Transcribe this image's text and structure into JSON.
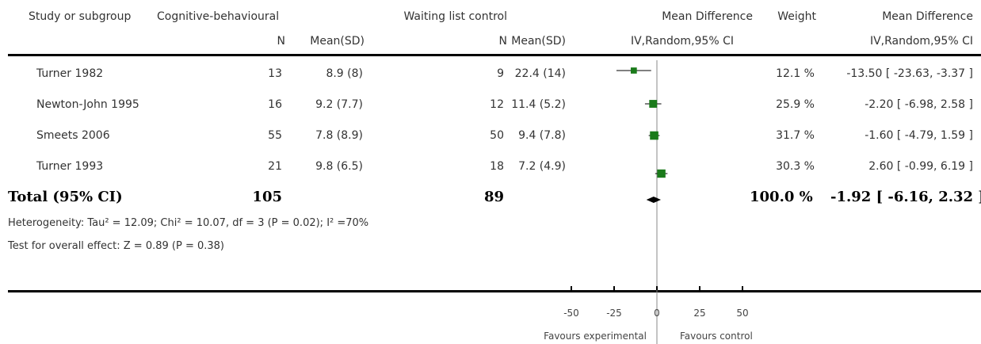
{
  "headers": {
    "study": "Study or subgroup",
    "exp_group": "Cognitive-behavioural",
    "ctrl_group": "Waiting list control",
    "md": "Mean Difference",
    "weight": "Weight",
    "md2": "Mean Difference",
    "n": "N",
    "mean_sd": "Mean(SD)",
    "n2": "N",
    "mean_sd2": "Mean(SD)",
    "method": "IV,Random,95% CI",
    "method2": "IV,Random,95% CI"
  },
  "rows": [
    {
      "study": "Turner 1982",
      "n_exp": "13",
      "msd_exp": "8.9 (8)",
      "n_ctrl": "9",
      "msd_ctrl": "22.4 (14)",
      "weight": "12.1 %",
      "ci_text": "-13.50 [ -23.63, -3.37 ]"
    },
    {
      "study": "Newton-John 1995",
      "n_exp": "16",
      "msd_exp": "9.2 (7.7)",
      "n_ctrl": "12",
      "msd_ctrl": "11.4 (5.2)",
      "weight": "25.9 %",
      "ci_text": "-2.20 [ -6.98, 2.58 ]"
    },
    {
      "study": "Smeets 2006",
      "n_exp": "55",
      "msd_exp": "7.8 (8.9)",
      "n_ctrl": "50",
      "msd_ctrl": "9.4 (7.8)",
      "weight": "31.7 %",
      "ci_text": "-1.60 [ -4.79, 1.59 ]"
    },
    {
      "study": "Turner 1993",
      "n_exp": "21",
      "msd_exp": "9.8 (6.5)",
      "n_ctrl": "18",
      "msd_ctrl": "7.2 (4.9)",
      "weight": "30.3 %",
      "ci_text": "2.60 [ -0.99, 6.19 ]"
    }
  ],
  "total": {
    "label": "Total (95% CI)",
    "n_exp": "105",
    "n_ctrl": "89",
    "weight": "100.0 %",
    "ci_text": "-1.92 [ -6.16, 2.32 ]"
  },
  "heterogeneity": "Heterogeneity: Tau² = 12.09; Chi² = 10.07, df = 3 (P = 0.02); I² =70%",
  "overall_effect": "Test for overall effect: Z = 0.89 (P = 0.38)",
  "favours_left": "Favours experimental",
  "favours_right": "Favours control",
  "chart_data": {
    "type": "forest",
    "x_ticks": [
      -50,
      -25,
      0,
      25,
      50
    ],
    "xlim": [
      -50,
      50
    ],
    "point_color": "#1a7a1a",
    "studies": [
      {
        "name": "Turner 1982",
        "md": -13.5,
        "lo": -23.63,
        "hi": -3.37,
        "weight": 12.1
      },
      {
        "name": "Newton-John 1995",
        "md": -2.2,
        "lo": -6.98,
        "hi": 2.58,
        "weight": 25.9
      },
      {
        "name": "Smeets 2006",
        "md": -1.6,
        "lo": -4.79,
        "hi": 1.59,
        "weight": 31.7
      },
      {
        "name": "Turner 1993",
        "md": 2.6,
        "lo": -0.99,
        "hi": 6.19,
        "weight": 30.3
      }
    ],
    "pooled": {
      "md": -1.92,
      "lo": -6.16,
      "hi": 2.32
    }
  }
}
